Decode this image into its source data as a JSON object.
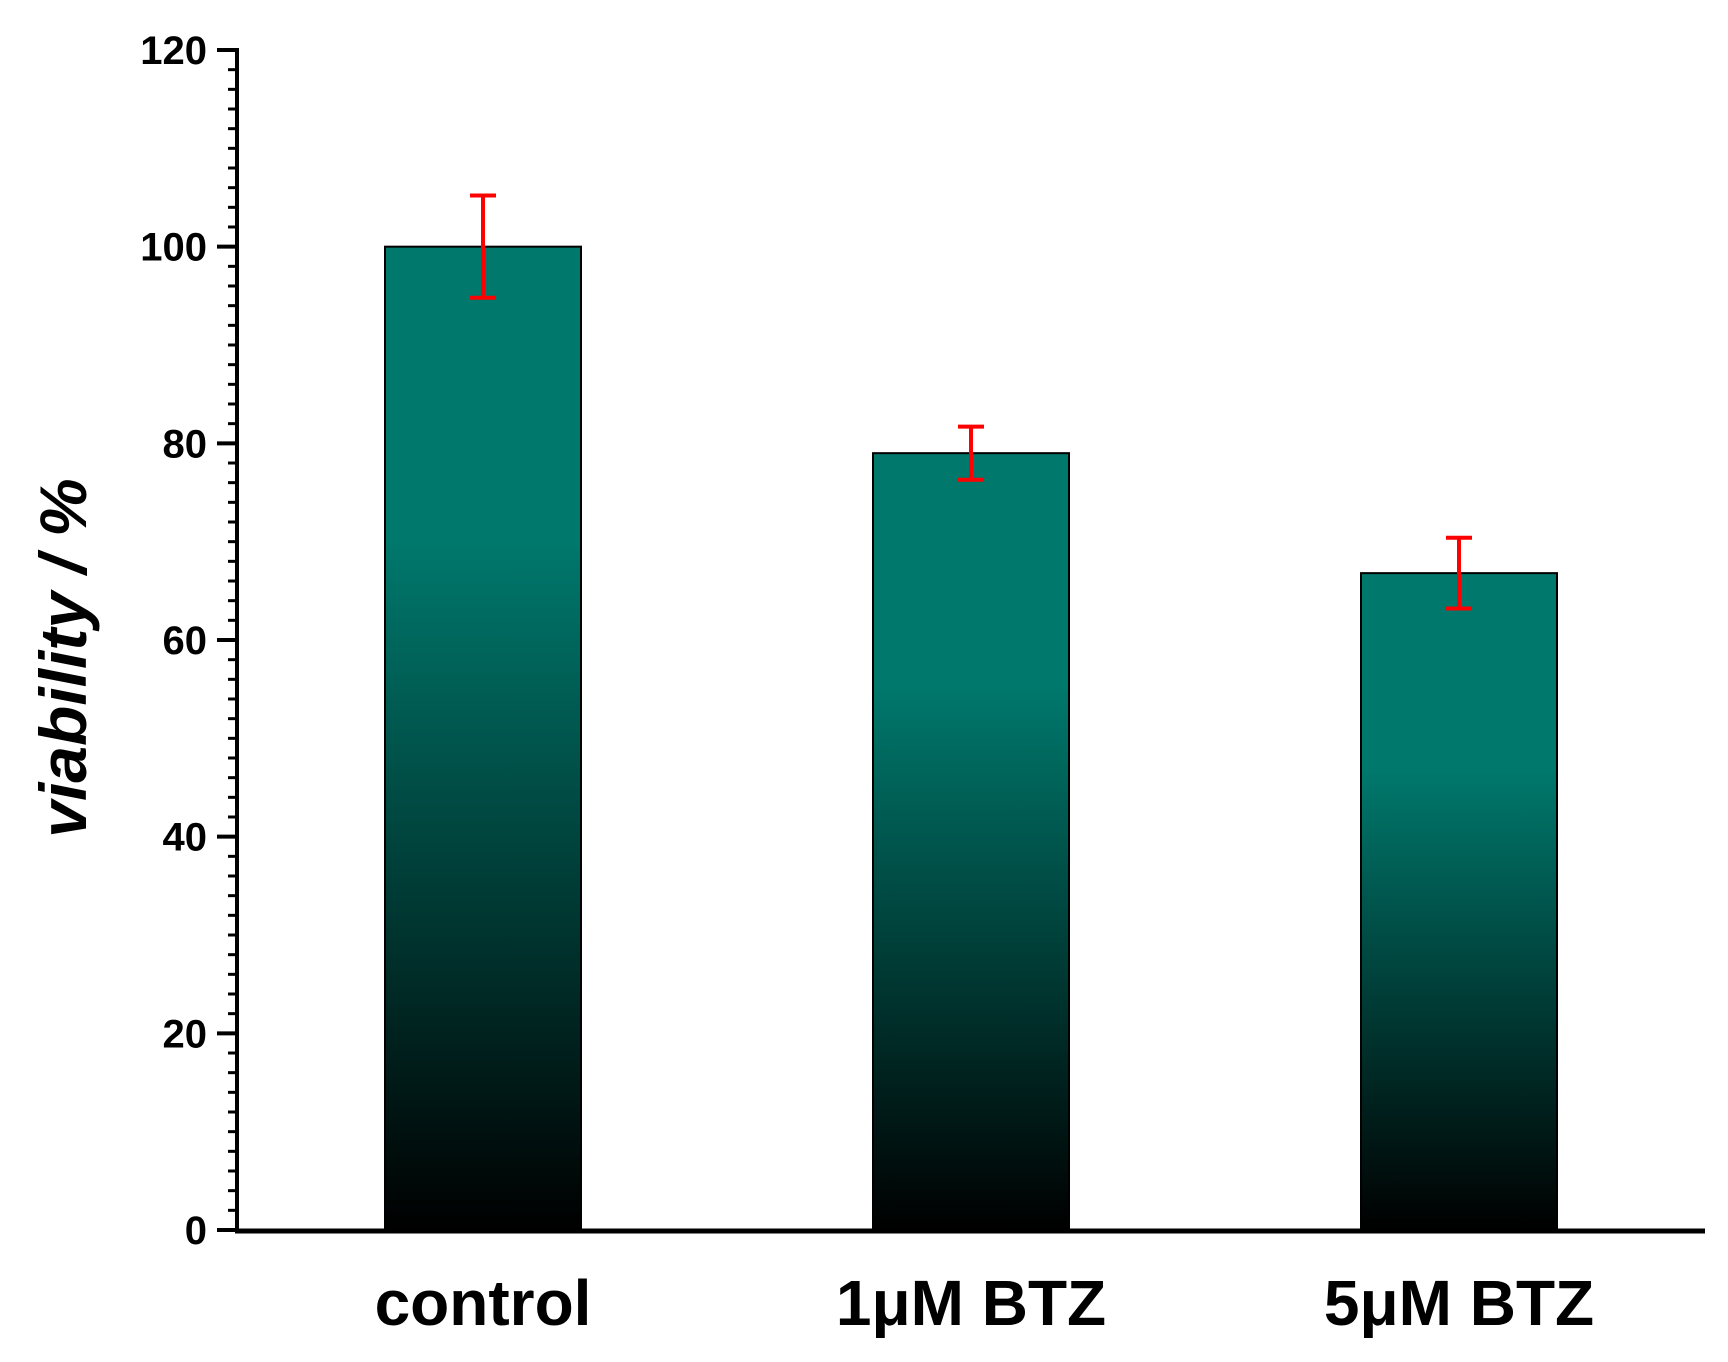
{
  "chart_data": {
    "type": "bar",
    "categories": [
      "control",
      "1μM BTZ",
      "5μM BTZ"
    ],
    "values": [
      100,
      79,
      66.8
    ],
    "errors": [
      5.2,
      2.7,
      3.6
    ],
    "title": "",
    "xlabel": "",
    "ylabel": "viability / %",
    "ylim": [
      0,
      120
    ],
    "yticks": [
      0,
      20,
      40,
      60,
      80,
      100,
      120
    ],
    "minor_tick_step": 2,
    "grid": false,
    "legend": "none",
    "colors": {
      "bar_top": "#00786C",
      "bar_bottom": "#000000",
      "bar_edge": "#000000",
      "error_bar": "#FF0000",
      "axis": "#000000"
    }
  }
}
